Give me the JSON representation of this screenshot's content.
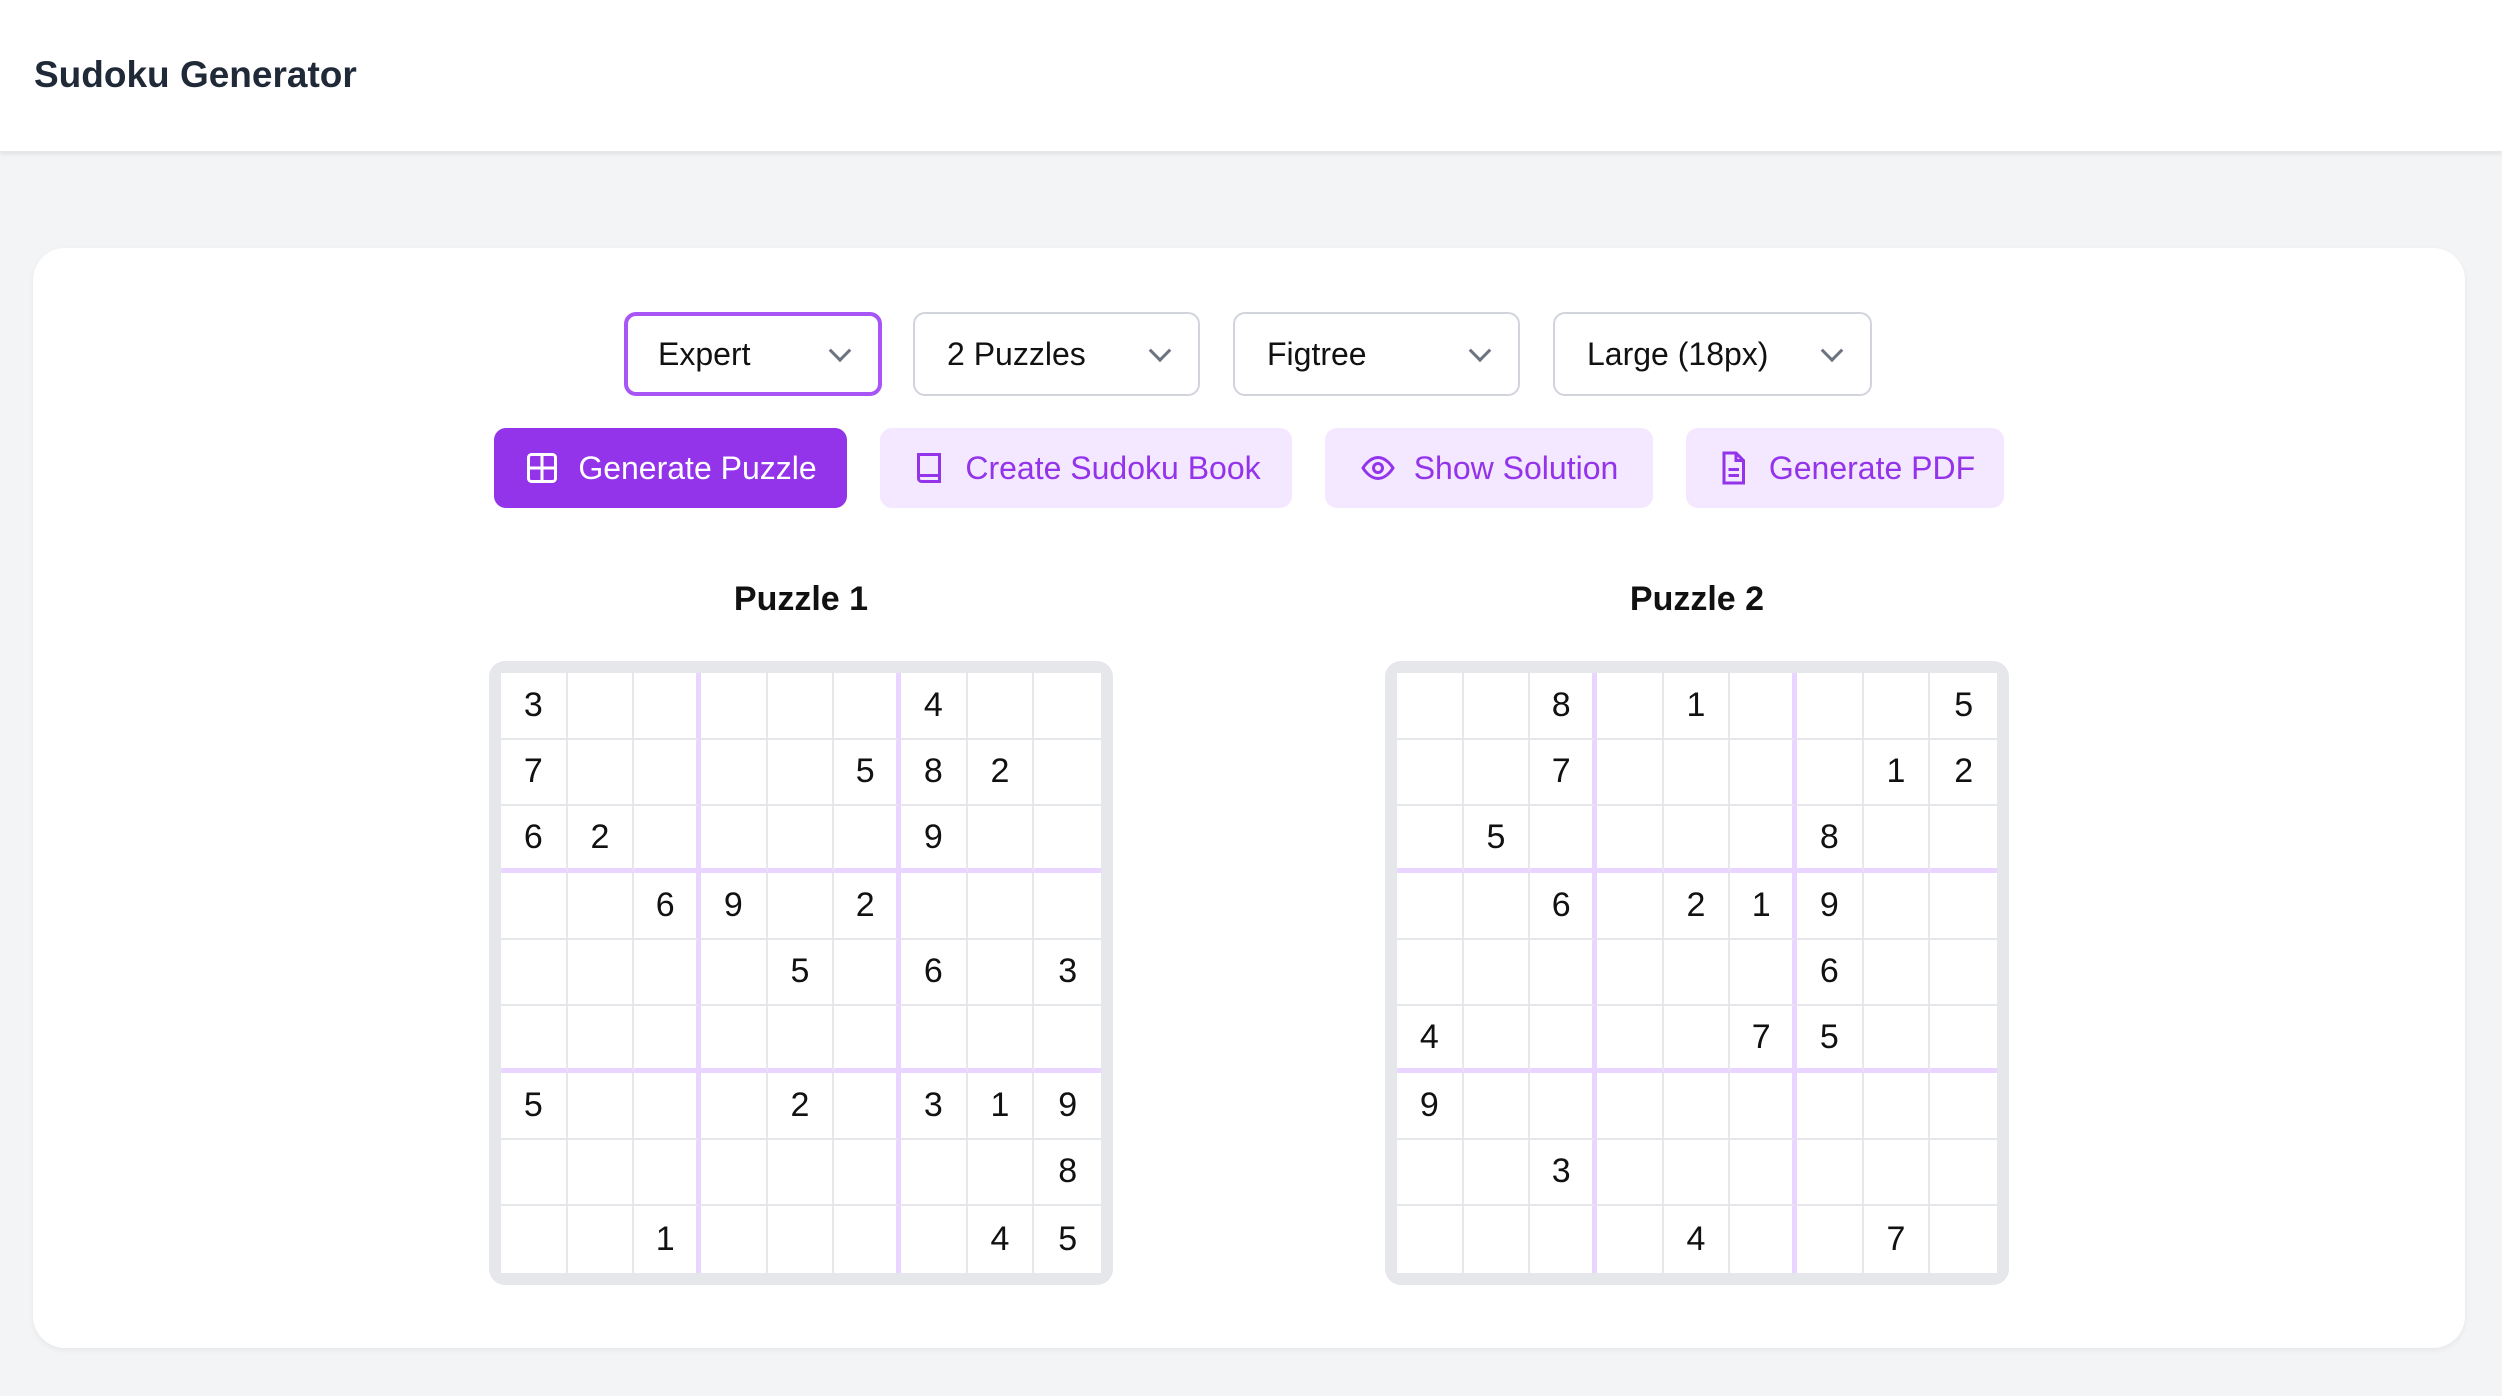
{
  "header": {
    "title": "Sudoku Generator"
  },
  "controls": {
    "difficulty": "Expert",
    "count": "2 Puzzles",
    "font": "Figtree",
    "size": "Large (18px)"
  },
  "buttons": {
    "generate": "Generate Puzzle",
    "book": "Create Sudoku Book",
    "solution": "Show Solution",
    "pdf": "Generate PDF"
  },
  "colors": {
    "accent": "#9333ea",
    "accent_light": "#f3e8ff",
    "box_line": "#e9d5ff",
    "focus": "#a855f7"
  },
  "puzzles": [
    {
      "title": "Puzzle 1",
      "grid": [
        [
          "3",
          "",
          "",
          "",
          "",
          "",
          "4",
          "",
          ""
        ],
        [
          "7",
          "",
          "",
          "",
          "",
          "5",
          "8",
          "2",
          ""
        ],
        [
          "6",
          "2",
          "",
          "",
          "",
          "",
          "9",
          "",
          ""
        ],
        [
          "",
          "",
          "6",
          "9",
          "",
          "2",
          "",
          "",
          ""
        ],
        [
          "",
          "",
          "",
          "",
          "5",
          "",
          "6",
          "",
          "3"
        ],
        [
          "",
          "",
          "",
          "",
          "",
          "",
          "",
          "",
          ""
        ],
        [
          "5",
          "",
          "",
          "",
          "2",
          "",
          "3",
          "1",
          "9"
        ],
        [
          "",
          "",
          "",
          "",
          "",
          "",
          "",
          "",
          "8"
        ],
        [
          "",
          "",
          "1",
          "",
          "",
          "",
          "",
          "4",
          "5"
        ]
      ]
    },
    {
      "title": "Puzzle 2",
      "grid": [
        [
          "",
          "",
          "8",
          "",
          "1",
          "",
          "",
          "",
          "5"
        ],
        [
          "",
          "",
          "7",
          "",
          "",
          "",
          "",
          "1",
          "2"
        ],
        [
          "",
          "5",
          "",
          "",
          "",
          "",
          "8",
          "",
          ""
        ],
        [
          "",
          "",
          "6",
          "",
          "2",
          "1",
          "9",
          "",
          ""
        ],
        [
          "",
          "",
          "",
          "",
          "",
          "",
          "6",
          "",
          ""
        ],
        [
          "4",
          "",
          "",
          "",
          "",
          "7",
          "5",
          "",
          ""
        ],
        [
          "9",
          "",
          "",
          "",
          "",
          "",
          "",
          "",
          ""
        ],
        [
          "",
          "",
          "3",
          "",
          "",
          "",
          "",
          "",
          ""
        ],
        [
          "",
          "",
          "",
          "",
          "4",
          "",
          "",
          "7",
          ""
        ]
      ]
    }
  ]
}
